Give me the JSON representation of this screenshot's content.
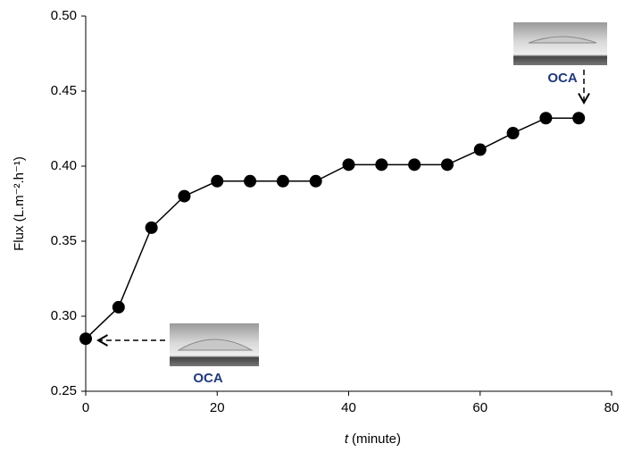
{
  "chart_data": {
    "type": "line",
    "x_label_var": "t",
    "x_label_unit": "(minute)",
    "y_label": "Flux (L.m⁻².h⁻¹)",
    "x": [
      0,
      5,
      10,
      15,
      20,
      25,
      30,
      35,
      40,
      45,
      50,
      55,
      60,
      65,
      70,
      75
    ],
    "series": [
      {
        "color": "#000000",
        "values": [
          0.285,
          0.306,
          0.359,
          0.38,
          0.39,
          0.39,
          0.39,
          0.39,
          0.401,
          0.401,
          0.401,
          0.401,
          0.411,
          0.422,
          0.432,
          0.432
        ]
      }
    ],
    "xlim": [
      0,
      80
    ],
    "xticks": [
      0,
      20,
      40,
      60,
      80
    ],
    "ylim": [
      0.25,
      0.5
    ],
    "yticks": [
      0.25,
      {
        "value": 0.3,
        "label": "0.30"
      },
      0.35,
      {
        "value": 0.4,
        "label": "0.40"
      },
      0.45,
      {
        "value": 0.5,
        "label": "0.50"
      }
    ],
    "annotations": [
      "OCA",
      "OCA"
    ]
  }
}
